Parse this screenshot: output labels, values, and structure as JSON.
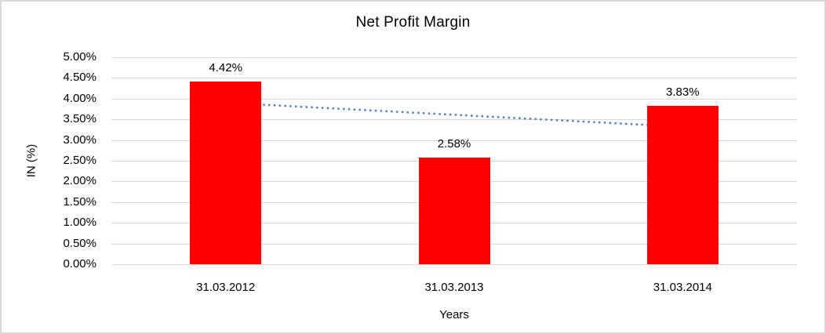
{
  "chart_data": {
    "type": "bar",
    "title": "Net Profit Margin",
    "xlabel": "Years",
    "ylabel": "IN (%)",
    "categories": [
      "31.03.2012",
      "31.03.2013",
      "31.03.2014"
    ],
    "values": [
      4.42,
      2.58,
      3.83
    ],
    "data_labels": [
      "4.42%",
      "2.58%",
      "3.83%"
    ],
    "y_ticks": [
      "5.00%",
      "4.50%",
      "4.00%",
      "3.50%",
      "3.00%",
      "2.50%",
      "2.00%",
      "1.50%",
      "1.00%",
      "0.50%",
      "0.00%"
    ],
    "ylim": [
      0,
      5
    ],
    "y_tick_step": 0.5,
    "grid": true,
    "legend_position": "none",
    "bar_color": "#ff0000",
    "gridline_color": "#d9d9d9",
    "text_color": "#000000",
    "trendline": {
      "type": "linear",
      "style": "dotted",
      "color": "#4f81bd",
      "start_value": 3.9,
      "end_value": 3.32
    }
  }
}
